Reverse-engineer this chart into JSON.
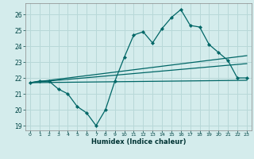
{
  "title": "",
  "xlabel": "Humidex (Indice chaleur)",
  "bg_color": "#d4ecec",
  "grid_color": "#b8d8d8",
  "line_color": "#006666",
  "xlim": [
    -0.5,
    23.5
  ],
  "ylim": [
    18.7,
    26.7
  ],
  "xticks": [
    0,
    1,
    2,
    3,
    4,
    5,
    6,
    7,
    8,
    9,
    10,
    11,
    12,
    13,
    14,
    15,
    16,
    17,
    18,
    19,
    20,
    21,
    22,
    23
  ],
  "yticks": [
    19,
    20,
    21,
    22,
    23,
    24,
    25,
    26
  ],
  "main_x": [
    0,
    1,
    2,
    3,
    4,
    5,
    6,
    7,
    8,
    9,
    10,
    11,
    12,
    13,
    14,
    15,
    16,
    17,
    18,
    19,
    20,
    21,
    22,
    23
  ],
  "main_y": [
    21.7,
    21.8,
    21.8,
    21.3,
    21.0,
    20.2,
    19.8,
    19.0,
    20.0,
    21.8,
    23.3,
    24.7,
    24.9,
    24.2,
    25.1,
    25.8,
    26.3,
    25.3,
    25.2,
    24.1,
    23.6,
    23.1,
    22.0,
    22.0
  ],
  "line1_x": [
    0,
    23
  ],
  "line1_y": [
    21.7,
    23.4
  ],
  "line2_x": [
    0,
    23
  ],
  "line2_y": [
    21.7,
    22.9
  ],
  "line3_x": [
    0,
    23
  ],
  "line3_y": [
    21.7,
    21.85
  ]
}
